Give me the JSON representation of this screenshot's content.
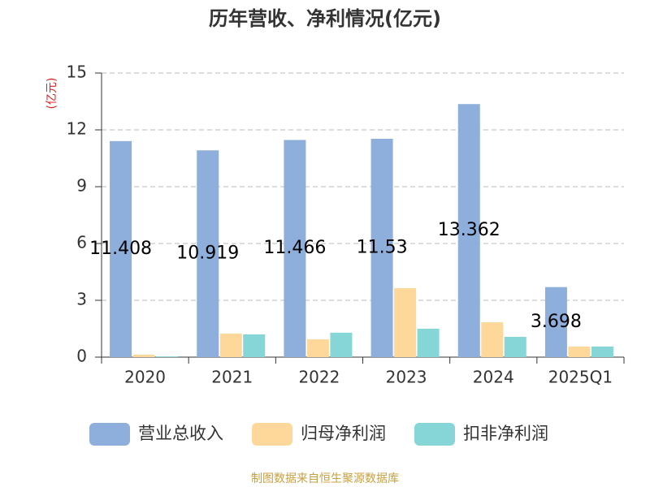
{
  "chart_data": {
    "type": "bar",
    "title": "历年营收、净利情况(亿元)",
    "y_label": "(亿元)",
    "categories": [
      "2020",
      "2021",
      "2022",
      "2023",
      "2024",
      "2025Q1"
    ],
    "series": [
      {
        "name": "营业总收入",
        "color": "#8eaedb",
        "values": [
          11.408,
          10.919,
          11.466,
          11.53,
          13.362,
          3.698
        ],
        "data_labels": true
      },
      {
        "name": "归母净利润",
        "color": "#fdd89a",
        "values": [
          0.13,
          1.24,
          0.94,
          3.64,
          1.84,
          0.56
        ]
      },
      {
        "name": "扣非净利润",
        "color": "#86d6d8",
        "values": [
          0.04,
          1.2,
          1.29,
          1.5,
          1.07,
          0.56
        ]
      }
    ],
    "ylim": [
      0,
      15
    ],
    "yticks": [
      0,
      3,
      6,
      9,
      12,
      15
    ],
    "grid": true,
    "source": "制图数据来自恒生聚源数据库"
  }
}
